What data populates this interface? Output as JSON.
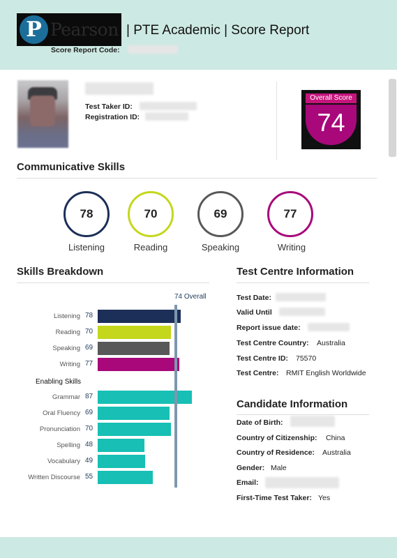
{
  "header": {
    "logo_letter": "P",
    "logo_word": "Pearson",
    "title": "| PTE Academic | Score Report",
    "code_label": "Score Report Code:"
  },
  "taker": {
    "test_taker_id_label": "Test Taker ID:",
    "registration_id_label": "Registration ID:"
  },
  "overall": {
    "label": "Overall Score",
    "score": "74"
  },
  "communicative": {
    "title": "Communicative Skills",
    "skills": [
      {
        "name": "Listening",
        "score": "78",
        "color": "#1c2f58"
      },
      {
        "name": "Reading",
        "score": "70",
        "color": "#c4d71c"
      },
      {
        "name": "Speaking",
        "score": "69",
        "color": "#585858"
      },
      {
        "name": "Writing",
        "score": "77",
        "color": "#a8087a"
      }
    ]
  },
  "breakdown": {
    "title": "Skills Breakdown",
    "overall_tag": "74 Overall",
    "enabling_title": "Enabling Skills"
  },
  "chart_data": {
    "type": "bar",
    "orientation": "horizontal",
    "overall_marker": 74,
    "categories": [
      "Listening",
      "Reading",
      "Speaking",
      "Writing",
      "Grammar",
      "Oral Fluency",
      "Pronunciation",
      "Spelling",
      "Vocabulary",
      "Written Discourse"
    ],
    "values": [
      78,
      70,
      69,
      77,
      87,
      69,
      70,
      48,
      49,
      55
    ],
    "colors": [
      "#1c2f58",
      "#c4d71c",
      "#585858",
      "#a8087a",
      "#17bfb4",
      "#17bfb4",
      "#17bfb4",
      "#17bfb4",
      "#17bfb4",
      "#17bfb4"
    ],
    "xlim": [
      10,
      90
    ]
  },
  "centre": {
    "title": "Test Centre Information",
    "rows": [
      {
        "label": "Test Date:",
        "value": ""
      },
      {
        "label": "Valid Until",
        "value": ""
      },
      {
        "label": "Report issue date:",
        "value": ""
      },
      {
        "label": "Test Centre Country:",
        "value": "Australia"
      },
      {
        "label": "Test Centre ID:",
        "value": "75570"
      },
      {
        "label": "Test Centre:",
        "value": "RMIT English Worldwide"
      }
    ]
  },
  "candidate": {
    "title": "Candidate Information",
    "rows": [
      {
        "label": "Date of Birth:",
        "value": ""
      },
      {
        "label": "Country of Citizenship:",
        "value": "China"
      },
      {
        "label": "Country of Residence:",
        "value": "Australia"
      },
      {
        "label": "Gender:",
        "value": "Male"
      },
      {
        "label": "Email:",
        "value": ""
      },
      {
        "label": "First-Time Test Taker:",
        "value": "Yes"
      }
    ]
  }
}
